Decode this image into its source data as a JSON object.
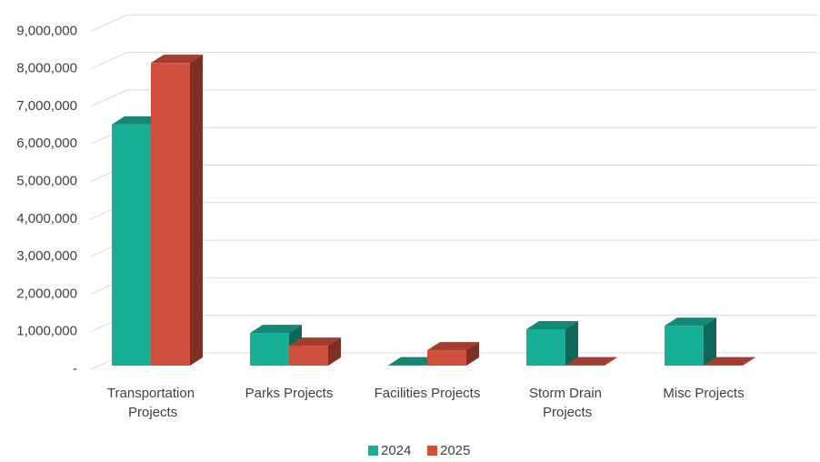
{
  "chart_data": {
    "type": "bar3d",
    "categories": [
      "Transportation Projects",
      "Parks Projects",
      "Facilities Projects",
      "Storm Drain Projects",
      "Misc Projects"
    ],
    "series": [
      {
        "name": "2024",
        "color": "#17ae96",
        "values": [
          6420000,
          870000,
          10000,
          970000,
          1060000
        ]
      },
      {
        "name": "2025",
        "color": "#d04e3c",
        "values": [
          8060000,
          530000,
          410000,
          10000,
          10000
        ]
      }
    ],
    "ylim": [
      0,
      9000000
    ],
    "yticks": [
      {
        "value": 0,
        "label": "-"
      },
      {
        "value": 1000000,
        "label": "1,000,000"
      },
      {
        "value": 2000000,
        "label": "2,000,000"
      },
      {
        "value": 3000000,
        "label": "3,000,000"
      },
      {
        "value": 4000000,
        "label": "4,000,000"
      },
      {
        "value": 5000000,
        "label": "5,000,000"
      },
      {
        "value": 6000000,
        "label": "6,000,000"
      },
      {
        "value": 7000000,
        "label": "7,000,000"
      },
      {
        "value": 8000000,
        "label": "8,000,000"
      },
      {
        "value": 9000000,
        "label": "9,000,000"
      }
    ],
    "grid": true,
    "legend": "bottom"
  }
}
